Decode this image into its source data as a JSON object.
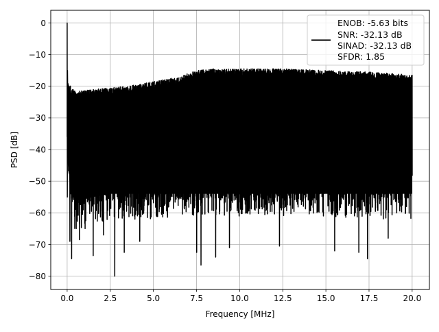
{
  "chart_data": {
    "type": "line",
    "title": "",
    "xlabel": "Frequency [MHz]",
    "ylabel": "PSD [dB]",
    "xlim": [
      -0.95,
      21.0
    ],
    "ylim": [
      -84.2,
      4.0
    ],
    "xticks": [
      0.0,
      2.5,
      5.0,
      7.5,
      10.0,
      12.5,
      15.0,
      17.5,
      20.0
    ],
    "xtick_labels": [
      "0.0",
      "2.5",
      "5.0",
      "7.5",
      "10.0",
      "12.5",
      "15.0",
      "17.5",
      "20.0"
    ],
    "yticks": [
      0,
      -10,
      -20,
      -30,
      -40,
      -50,
      -60,
      -70,
      -80
    ],
    "ytick_labels": [
      "0",
      "−10",
      "−20",
      "−30",
      "−40",
      "−50",
      "−60",
      "−70",
      "−80"
    ],
    "grid": true,
    "legend_position": "top-right",
    "series": [
      {
        "color": "#000000",
        "x_range": [
          0.0,
          20.0
        ],
        "peak": {
          "x": 0.0,
          "y": 0.0
        },
        "envelope": {
          "x": [
            0.0,
            0.3,
            0.8,
            1.5,
            2.5,
            3.5,
            5.0,
            6.5,
            7.5,
            8.5,
            10.0,
            12.5,
            15.0,
            17.5,
            19.0,
            20.0
          ],
          "upper": [
            -18,
            -21,
            -21.5,
            -21,
            -20.5,
            -20,
            -18.5,
            -17,
            -15,
            -14.5,
            -14.5,
            -14.5,
            -15,
            -15.5,
            -16,
            -16.5
          ],
          "lower": [
            -55,
            -66,
            -66,
            -64,
            -62,
            -62,
            -62,
            -61,
            -61,
            -61,
            -61,
            -61,
            -61,
            -62,
            -62,
            -62
          ],
          "dense_lower": [
            -45,
            -58,
            -58,
            -57,
            -56,
            -56,
            -56,
            -56,
            -56,
            -56,
            -56,
            -56,
            -56,
            -56,
            -56,
            -56
          ]
        },
        "deep_dips": [
          {
            "x": 0.15,
            "y": -69.0
          },
          {
            "x": 0.25,
            "y": -74.5
          },
          {
            "x": 0.7,
            "y": -68.5
          },
          {
            "x": 1.5,
            "y": -73.5
          },
          {
            "x": 2.1,
            "y": -67.0
          },
          {
            "x": 2.75,
            "y": -80.0
          },
          {
            "x": 3.3,
            "y": -72.5
          },
          {
            "x": 4.2,
            "y": -69.0
          },
          {
            "x": 7.5,
            "y": -72.5
          },
          {
            "x": 7.75,
            "y": -76.5
          },
          {
            "x": 8.6,
            "y": -74.0
          },
          {
            "x": 9.4,
            "y": -71.0
          },
          {
            "x": 12.3,
            "y": -70.5
          },
          {
            "x": 15.5,
            "y": -72.0
          },
          {
            "x": 16.9,
            "y": -72.5
          },
          {
            "x": 17.4,
            "y": -74.5
          },
          {
            "x": 18.6,
            "y": -68.0
          }
        ]
      }
    ],
    "legend": {
      "lines": [
        "ENOB: -5.63 bits",
        "SNR: -32.13 dB",
        "SINAD: -32.13 dB",
        "SFDR: 1.85"
      ]
    }
  }
}
